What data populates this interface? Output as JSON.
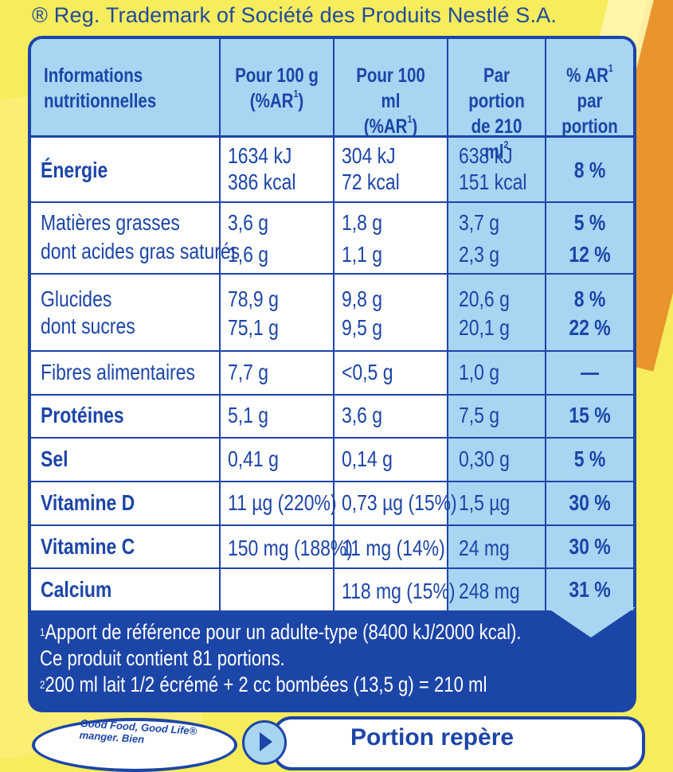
{
  "trademark": "® Reg. Trademark of  Société des Produits Nestlé S.A.",
  "table": {
    "headers": {
      "col1_line1": "Informations",
      "col1_line2": "nutritionnelles",
      "col2_line1": "Pour 100 g",
      "col2_line2": "(%AR",
      "col2_sup": "1",
      "col2_close": ")",
      "col3_line1": "Pour 100 ml",
      "col3_line2": "(%AR",
      "col3_sup": "1",
      "col3_close": ")",
      "col4_line1": "Par portion",
      "col4_line2": "de 210 ml",
      "col4_sup": "2",
      "col5_line1": "% AR",
      "col5_sup": "1",
      "col5_line2": "par portion"
    },
    "rows": {
      "energie": {
        "label": "Énergie",
        "p100g_1": "1634 kJ",
        "p100g_2": "386 kcal",
        "p100ml_1": "304 kJ",
        "p100ml_2": "72 kcal",
        "portion_1": "638 kJ",
        "portion_2": "151 kcal",
        "ar": "8 %"
      },
      "matieres": {
        "label1": "Matières grasses",
        "label2": "dont acides gras saturés",
        "p100g_1": "3,6 g",
        "p100g_2": "1,6 g",
        "p100ml_1": "1,8 g",
        "p100ml_2": "1,1 g",
        "portion_1": "3,7 g",
        "portion_2": "2,3 g",
        "ar_1": "5 %",
        "ar_2": "12 %"
      },
      "glucides": {
        "label1": "Glucides",
        "label2": "dont sucres",
        "p100g_1": "78,9 g",
        "p100g_2": "75,1 g",
        "p100ml_1": "9,8 g",
        "p100ml_2": "9,5 g",
        "portion_1": "20,6 g",
        "portion_2": "20,1 g",
        "ar_1": "8 %",
        "ar_2": "22 %"
      },
      "fibres": {
        "label": "Fibres alimentaires",
        "p100g": "7,7 g",
        "p100ml": "<0,5 g",
        "portion": "1,0 g",
        "ar": "—"
      },
      "proteines": {
        "label": "Protéines",
        "p100g": "5,1 g",
        "p100ml": "3,6 g",
        "portion": "7,5 g",
        "ar": "15 %"
      },
      "sel": {
        "label": "Sel",
        "p100g": "0,41 g",
        "p100ml": "0,14 g",
        "portion": "0,30 g",
        "ar": "5 %"
      },
      "vitd": {
        "label": "Vitamine D",
        "p100g": "11 µg (220%)",
        "p100ml": "0,73 µg (15%)",
        "portion": "1,5 µg",
        "ar": "30 %"
      },
      "vitc": {
        "label": "Vitamine C",
        "p100g": "150 mg (188%)",
        "p100ml": "11 mg (14%)",
        "portion": "24 mg",
        "ar": "30 %"
      },
      "calcium": {
        "label": "Calcium",
        "p100g": "",
        "p100ml": "118 mg (15%)",
        "portion": "248 mg",
        "ar": "31 %"
      }
    }
  },
  "footnotes": {
    "sup1": "1",
    "line1": "Apport de référence pour un adulte-type (8400 kJ/2000 kcal).",
    "line2": "Ce produit contient 81 portions.",
    "sup2": "2",
    "line3": "200 ml lait 1/2 écrémé + 2 cc bombées (13,5 g) = 210 ml"
  },
  "bottom": {
    "badge_text": "Good Food, Good Life®",
    "badge_text2": "manger. Bien",
    "portion_title": "Portion repère"
  },
  "colors": {
    "navy": "#1c45a8",
    "light_blue": "#a7d5f2",
    "yellow": "#f7ec5c",
    "orange": "#e8902a"
  }
}
